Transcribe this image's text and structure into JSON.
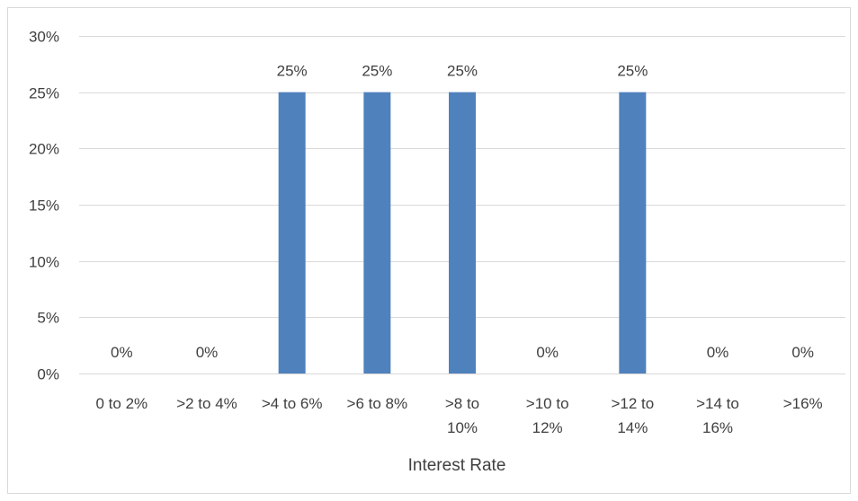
{
  "chart_data": {
    "type": "bar",
    "categories": [
      [
        "0 to 2%"
      ],
      [
        ">2 to 4%"
      ],
      [
        ">4 to 6%"
      ],
      [
        ">6 to 8%"
      ],
      [
        ">8 to",
        "10%"
      ],
      [
        ">10 to",
        "12%"
      ],
      [
        ">12 to",
        "14%"
      ],
      [
        ">14 to",
        "16%"
      ],
      [
        ">16%"
      ]
    ],
    "values": [
      0,
      0,
      25,
      25,
      25,
      0,
      25,
      0,
      0
    ],
    "data_labels": [
      "0%",
      "0%",
      "25%",
      "25%",
      "25%",
      "0%",
      "25%",
      "0%",
      "0%"
    ],
    "title": "",
    "xlabel": "Interest Rate",
    "ylabel": "",
    "ylim": [
      0,
      30
    ],
    "yticks": [
      0,
      5,
      10,
      15,
      20,
      25,
      30
    ],
    "ytick_labels": [
      "0%",
      "5%",
      "10%",
      "15%",
      "20%",
      "25%",
      "30%"
    ],
    "grid": true,
    "bar_color": "#4f81bd",
    "grid_color": "#d9d9d9",
    "text_color": "#404040"
  }
}
